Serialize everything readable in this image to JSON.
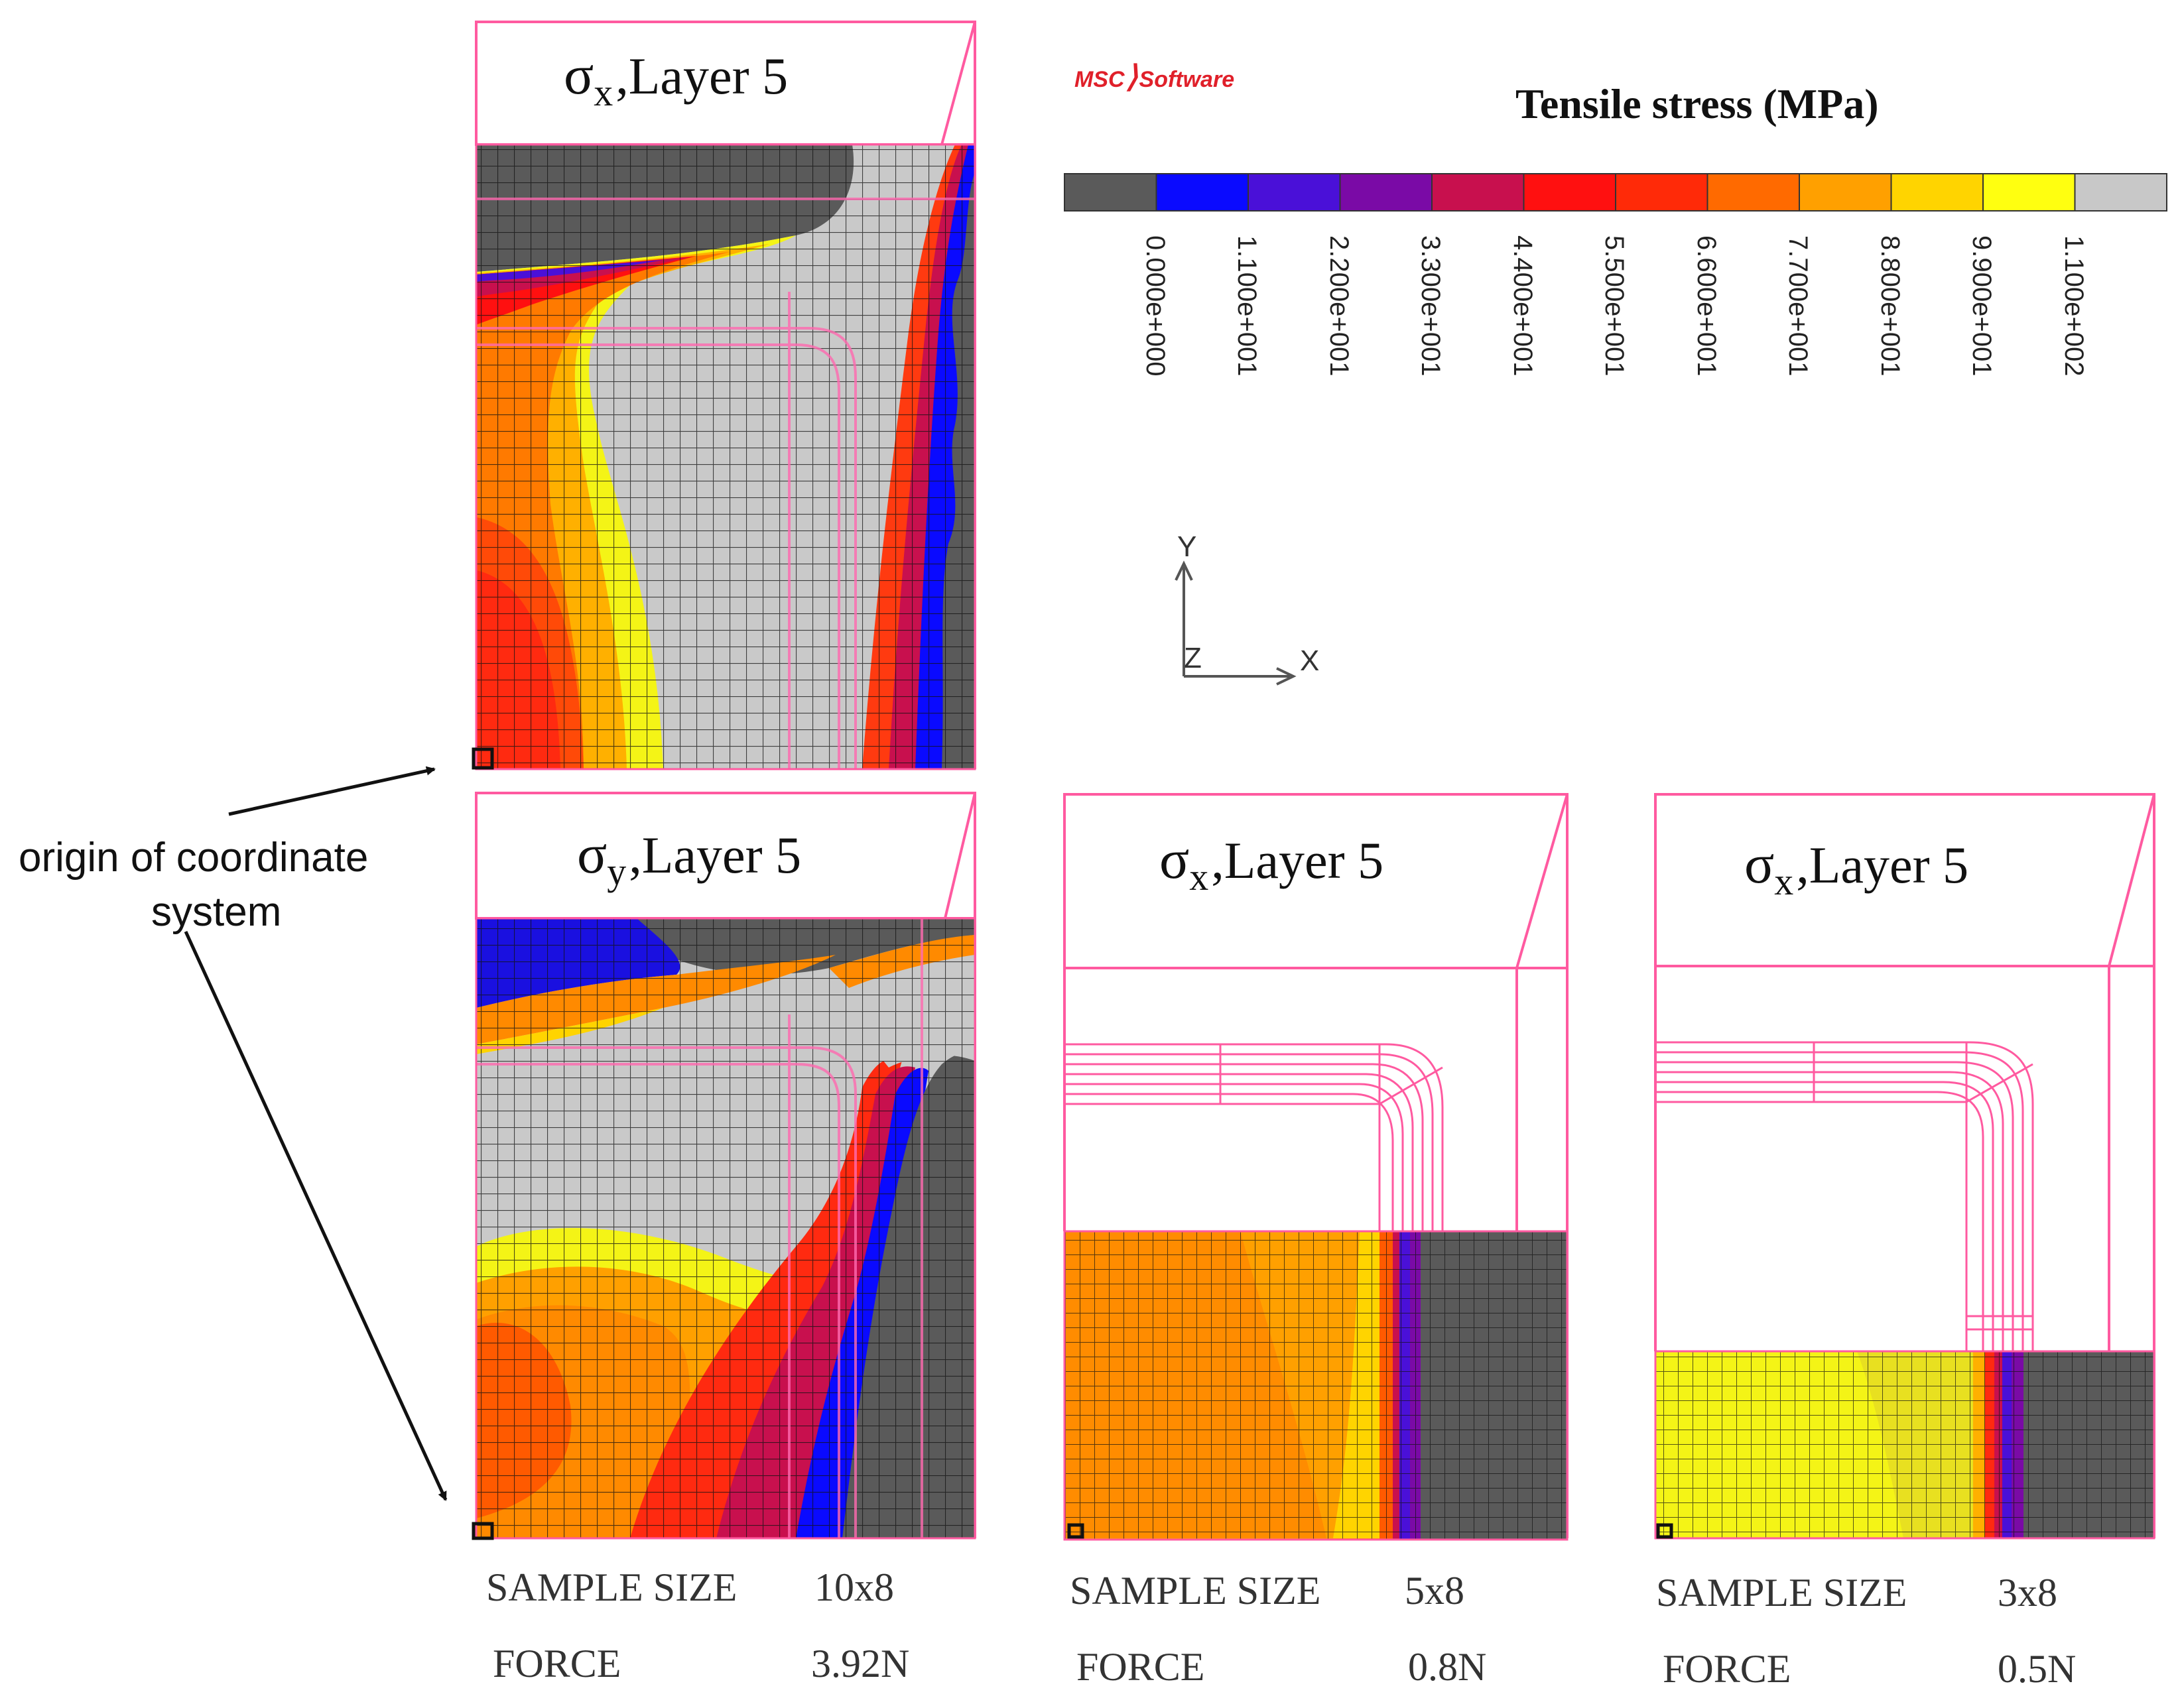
{
  "brand": {
    "part1": "MSC",
    "part2": "Software"
  },
  "legend": {
    "title": "Tensile stress (MPa)",
    "ticks": [
      "0.000e+000",
      "1.100e+001",
      "2.200e+001",
      "3.300e+001",
      "4.400e+001",
      "5.500e+001",
      "6.600e+001",
      "7.700e+001",
      "8.800e+001",
      "9.900e+001",
      "1.100e+002"
    ],
    "colors": [
      "#5a5a5a",
      "#0a0aff",
      "#4a10d8",
      "#7a0aa6",
      "#c8104e",
      "#ff1010",
      "#ff2a08",
      "#ff6a00",
      "#ffa000",
      "#ffd400",
      "#ffff10",
      "#c8c8c8"
    ]
  },
  "axes": {
    "y": "Y",
    "x": "X",
    "z": "Z"
  },
  "annotation": {
    "line1": "origin of coordinate",
    "line2": "system"
  },
  "panels": [
    {
      "symbol": "σ",
      "sub": "x",
      "rest": ",Layer 5"
    },
    {
      "symbol": "σ",
      "sub": "y",
      "rest": ",Layer 5"
    },
    {
      "symbol": "σ",
      "sub": "x",
      "rest": ",Layer 5"
    },
    {
      "symbol": "σ",
      "sub": "x",
      "rest": ",Layer 5"
    }
  ],
  "samples": [
    {
      "size_label": "SAMPLE SIZE",
      "size": "10x8",
      "force_label": "FORCE",
      "force": "3.92N"
    },
    {
      "size_label": "SAMPLE SIZE",
      "size": "5x8",
      "force_label": "FORCE",
      "force": "0.8N"
    },
    {
      "size_label": "SAMPLE SIZE",
      "size": "3x8",
      "force_label": "FORCE",
      "force": "0.5N"
    }
  ]
}
